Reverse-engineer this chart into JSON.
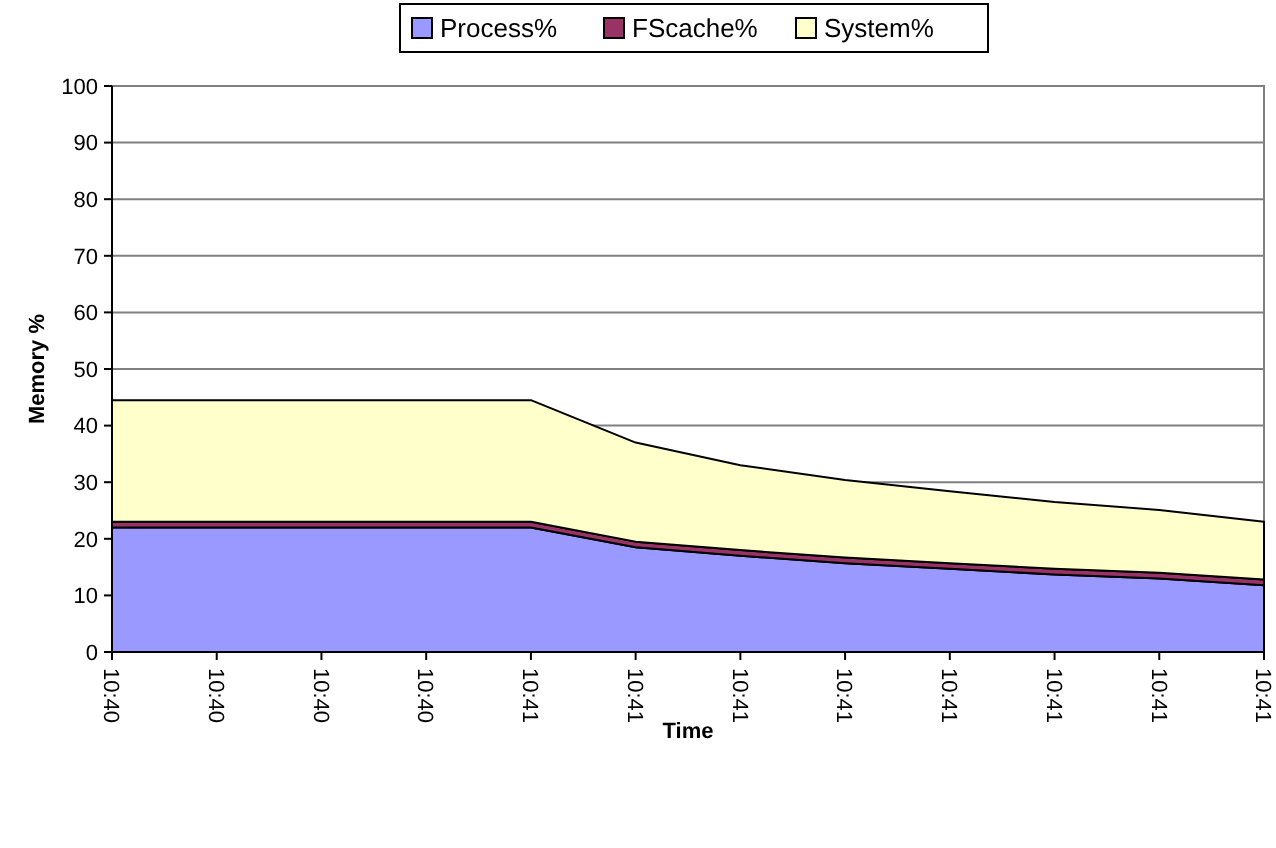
{
  "chart_data": {
    "type": "area",
    "stacked": true,
    "xlabel": "Time",
    "ylabel": "Memory %",
    "categories": [
      "10:40",
      "10:40",
      "10:40",
      "10:40",
      "10:41",
      "10:41",
      "10:41",
      "10:41",
      "10:41",
      "10:41",
      "10:41",
      "10:41"
    ],
    "series": [
      {
        "name": "Process%",
        "color": "#9999ff",
        "values": [
          22,
          22,
          22,
          22,
          22,
          18.5,
          17,
          15.7,
          14.7,
          13.7,
          13,
          11.8
        ]
      },
      {
        "name": "FScache%",
        "color": "#993366",
        "values": [
          1,
          1,
          1,
          1,
          1,
          1,
          1,
          1,
          1,
          1,
          1,
          1
        ]
      },
      {
        "name": "System%",
        "color": "#ffffcc",
        "values": [
          21.5,
          21.5,
          21.5,
          21.5,
          21.5,
          17.5,
          15,
          13.7,
          12.7,
          11.8,
          11.1,
          10.2
        ]
      }
    ],
    "ylim": [
      0,
      100
    ],
    "yticks": [
      0,
      10,
      20,
      30,
      40,
      50,
      60,
      70,
      80,
      90,
      100
    ],
    "grid": "y",
    "legend": "top"
  }
}
